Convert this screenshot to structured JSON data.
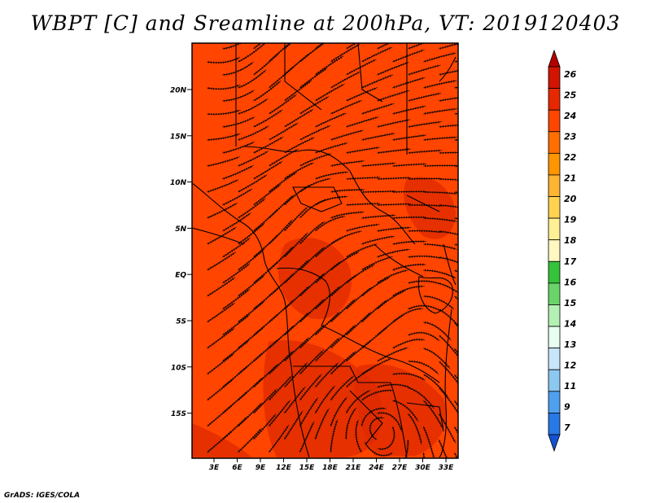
{
  "title": "WBPT [C] and Sreamline at 200hPa, VT: 2019120403",
  "credit": "GrADS: IGES/COLA",
  "map": {
    "lat_labels": [
      "20N",
      "15N",
      "10N",
      "5N",
      "EQ",
      "5S",
      "10S",
      "15S"
    ],
    "lon_labels": [
      "3E",
      "6E",
      "9E",
      "12E",
      "15E",
      "18E",
      "21E",
      "24E",
      "27E",
      "30E",
      "33E"
    ],
    "base_fill": "#ff4500",
    "dark_fill": "#dd2a00",
    "streamline_color": "#1a0800",
    "border_color": "#000000"
  },
  "colorbar": {
    "labels": [
      "26",
      "25",
      "24",
      "23",
      "22",
      "21",
      "20",
      "19",
      "18",
      "17",
      "16",
      "15",
      "14",
      "13",
      "12",
      "11",
      "9",
      "7"
    ],
    "colors": [
      "#b40000",
      "#d21400",
      "#e62800",
      "#ff4600",
      "#ff6e00",
      "#ff9600",
      "#ffb432",
      "#ffd250",
      "#fff096",
      "#fff8c0",
      "#36c23a",
      "#6ad46a",
      "#b4f0b4",
      "#e6fff0",
      "#c8e6fa",
      "#8cc8f0",
      "#50a0f0",
      "#2878e6",
      "#1450d2"
    ]
  }
}
